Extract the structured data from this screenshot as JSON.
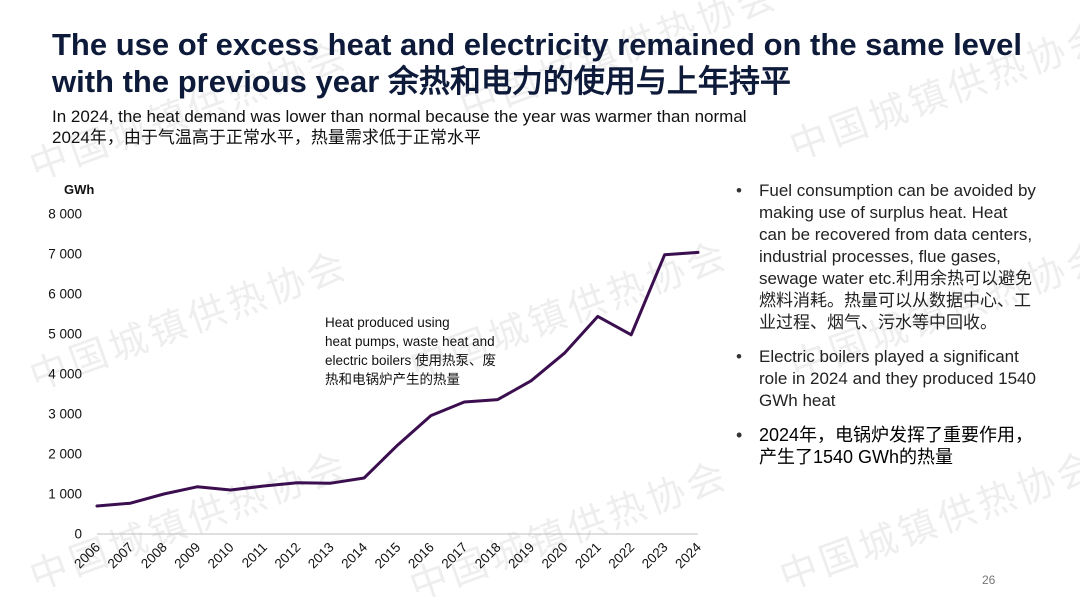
{
  "slide": {
    "title_line1": "The use of excess heat and electricity remained on the same level",
    "title_line2": "with the previous year 余热和电力的使用与上年持平",
    "subtitle_line1": "In 2024, the heat demand was lower than normal because the year was warmer than normal",
    "subtitle_line2": "2024年，由于气温高于正常水平，热量需求低于正常水平",
    "page_number": "26"
  },
  "watermark_text": "中国城镇供热协会",
  "annotation": {
    "line1": "Heat produced using",
    "line2": "heat pumps, waste heat and",
    "line3": "electric boilers 使用热泵、废",
    "line4": "热和电锅炉产生的热量"
  },
  "bullets": [
    {
      "text": "Fuel consumption can be avoided by making use of surplus heat. Heat can be recovered from data centers, industrial processes, flue gases, sewage water etc.利用余热可以避免燃料消耗。热量可以从数据中心、工业过程、烟气、污水等中回收。"
    },
    {
      "text": "Electric boilers played a significant role in 2024 and they produced 1540 GWh heat"
    },
    {
      "text": "2024年，电锅炉发挥了重要作用，产生了1540 GWh的热量"
    }
  ],
  "colors": {
    "line": "#3b0f4f",
    "axis": "#bfbfbf",
    "title": "#0d1a3a"
  },
  "chart_data": {
    "type": "line",
    "title": "",
    "ylabel": "GWh",
    "xlabel": "",
    "ylim": [
      0,
      8000
    ],
    "grid": false,
    "x": [
      "2006",
      "2007",
      "2008",
      "2009",
      "2010",
      "2011",
      "2012",
      "2013",
      "2014",
      "2015",
      "2016",
      "2017",
      "2018",
      "2019",
      "2020",
      "2021",
      "2022",
      "2023",
      "2024"
    ],
    "y_ticks": [
      0,
      1000,
      2000,
      3000,
      4000,
      5000,
      6000,
      7000,
      8000
    ],
    "y_tick_labels": [
      "0",
      "1 000",
      "2 000",
      "3 000",
      "4 000",
      "5 000",
      "6 000",
      "7 000",
      "8 000"
    ],
    "series": [
      {
        "name": "Heat produced using heat pumps, waste heat and electric boilers",
        "values": [
          700,
          770,
          1000,
          1180,
          1100,
          1200,
          1280,
          1270,
          1400,
          2220,
          2960,
          3300,
          3360,
          3830,
          4520,
          5440,
          4980,
          6980,
          7040
        ]
      }
    ]
  }
}
